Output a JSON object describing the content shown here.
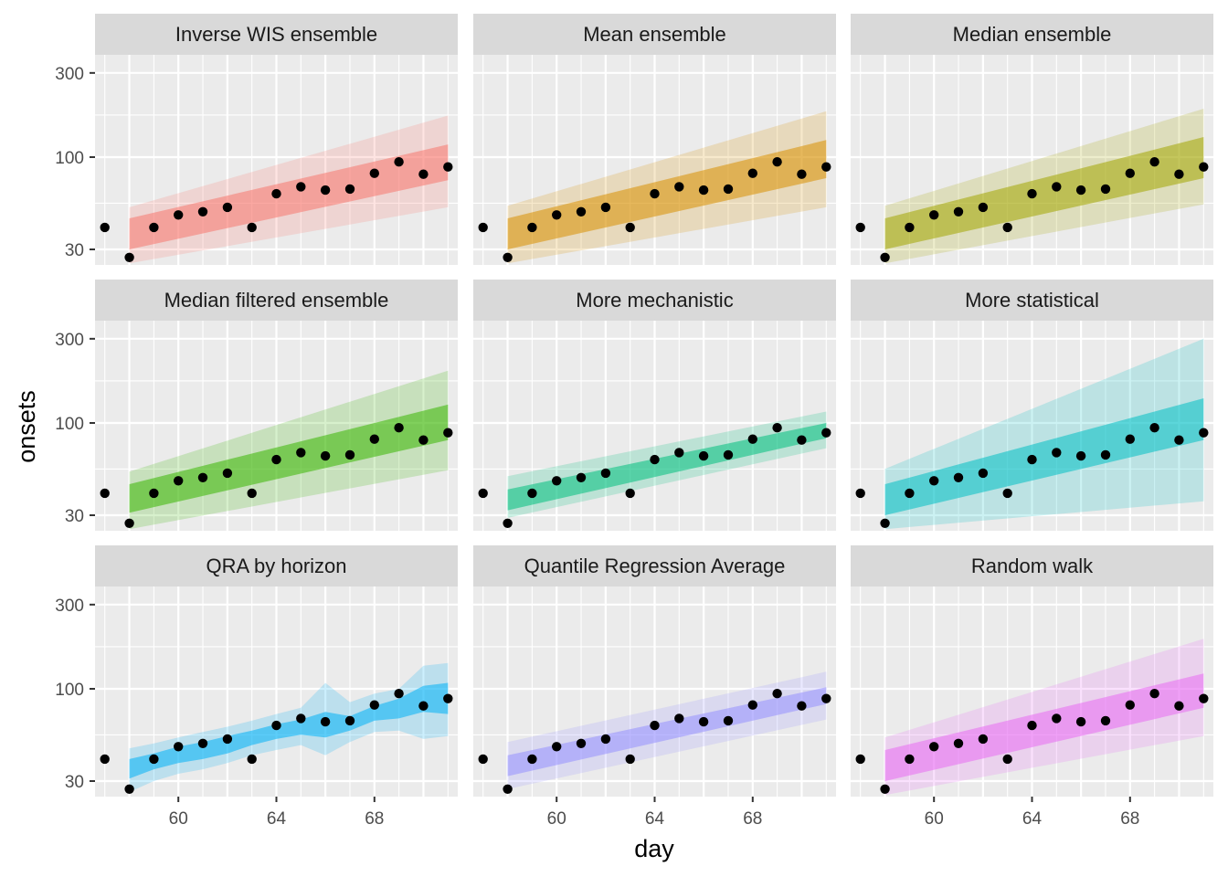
{
  "chart_data": {
    "type": "scatter",
    "xlabel": "day",
    "ylabel": "onsets",
    "y_scale": "log",
    "xlim": [
      56.6,
      71.4
    ],
    "ylim": [
      24.5,
      380
    ],
    "x_ticks": [
      60,
      64,
      68
    ],
    "y_ticks": [
      30,
      100,
      300
    ],
    "grid": true,
    "legend": "none",
    "observations": {
      "x": [
        57,
        58,
        59,
        60,
        61,
        62,
        63,
        64,
        65,
        66,
        67,
        68,
        69,
        70,
        71
      ],
      "y": [
        40,
        27,
        40,
        47,
        49,
        52,
        40,
        62,
        68,
        65,
        66,
        81,
        94,
        80,
        88
      ]
    },
    "forecast_x": [
      58,
      71
    ],
    "panels": [
      {
        "title": "Inverse WIS ensemble",
        "color": "#F8766D",
        "band50": {
          "x": [
            58,
            71
          ],
          "lower": [
            30,
            74
          ],
          "upper": [
            45,
            118
          ]
        },
        "band90": {
          "x": [
            58,
            71
          ],
          "lower": [
            25,
            52
          ],
          "upper": [
            52,
            172
          ]
        }
      },
      {
        "title": "Mean ensemble",
        "color": "#D89000",
        "band50": {
          "x": [
            58,
            71
          ],
          "lower": [
            30,
            76
          ],
          "upper": [
            45,
            125
          ]
        },
        "band90": {
          "x": [
            58,
            71
          ],
          "lower": [
            25,
            52
          ],
          "upper": [
            53,
            182
          ]
        }
      },
      {
        "title": "Median ensemble",
        "color": "#A3A500",
        "band50": {
          "x": [
            58,
            71
          ],
          "lower": [
            30,
            76
          ],
          "upper": [
            45,
            130
          ]
        },
        "band90": {
          "x": [
            58,
            71
          ],
          "lower": [
            25,
            54
          ],
          "upper": [
            53,
            188
          ]
        }
      },
      {
        "title": "Median filtered ensemble",
        "color": "#39B600",
        "band50": {
          "x": [
            58,
            71
          ],
          "lower": [
            31,
            80
          ],
          "upper": [
            45,
            127
          ]
        },
        "band90": {
          "x": [
            58,
            71
          ],
          "lower": [
            25,
            54
          ],
          "upper": [
            53,
            198
          ]
        }
      },
      {
        "title": "More mechanistic",
        "color": "#00BF7D",
        "band50": {
          "x": [
            58,
            71
          ],
          "lower": [
            32,
            82
          ],
          "upper": [
            42,
            100
          ]
        },
        "band90": {
          "x": [
            58,
            71
          ],
          "lower": [
            29,
            72
          ],
          "upper": [
            50,
            116
          ]
        }
      },
      {
        "title": "More statistical",
        "color": "#00BFC4",
        "band50": {
          "x": [
            58,
            71
          ],
          "lower": [
            30,
            80
          ],
          "upper": [
            45,
            138
          ]
        },
        "band90": {
          "x": [
            58,
            71
          ],
          "lower": [
            25,
            36
          ],
          "upper": [
            55,
            300
          ]
        }
      },
      {
        "title": "QRA by horizon",
        "color": "#00B0F6",
        "band50": {
          "x": [
            58,
            59,
            60,
            61,
            62,
            63,
            64,
            65,
            66,
            67,
            68,
            69,
            70,
            71
          ],
          "lower": [
            31,
            35,
            38,
            40,
            43,
            48,
            52,
            55,
            53,
            58,
            66,
            68,
            74,
            72
          ],
          "upper": [
            40,
            43,
            47,
            50,
            54,
            58,
            63,
            67,
            74,
            70,
            80,
            88,
            104,
            108
          ]
        },
        "band90": {
          "x": [
            58,
            59,
            60,
            61,
            62,
            63,
            64,
            65,
            66,
            67,
            68,
            69,
            70,
            71
          ],
          "lower": [
            26,
            30,
            33,
            35,
            38,
            42,
            45,
            48,
            42,
            50,
            57,
            58,
            52,
            54
          ],
          "upper": [
            46,
            49,
            53,
            57,
            61,
            66,
            72,
            78,
            108,
            84,
            94,
            100,
            135,
            140
          ]
        }
      },
      {
        "title": "Quantile Regression Average",
        "color": "#9590FF",
        "band50": {
          "x": [
            58,
            71
          ],
          "lower": [
            32,
            82
          ],
          "upper": [
            42,
            102
          ]
        },
        "band90": {
          "x": [
            58,
            71
          ],
          "lower": [
            27,
            67
          ],
          "upper": [
            50,
            125
          ]
        }
      },
      {
        "title": "Random walk",
        "color": "#E76BF3",
        "band50": {
          "x": [
            58,
            71
          ],
          "lower": [
            30,
            78
          ],
          "upper": [
            45,
            122
          ]
        },
        "band90": {
          "x": [
            58,
            71
          ],
          "lower": [
            25,
            54
          ],
          "upper": [
            53,
            192
          ]
        }
      }
    ]
  }
}
